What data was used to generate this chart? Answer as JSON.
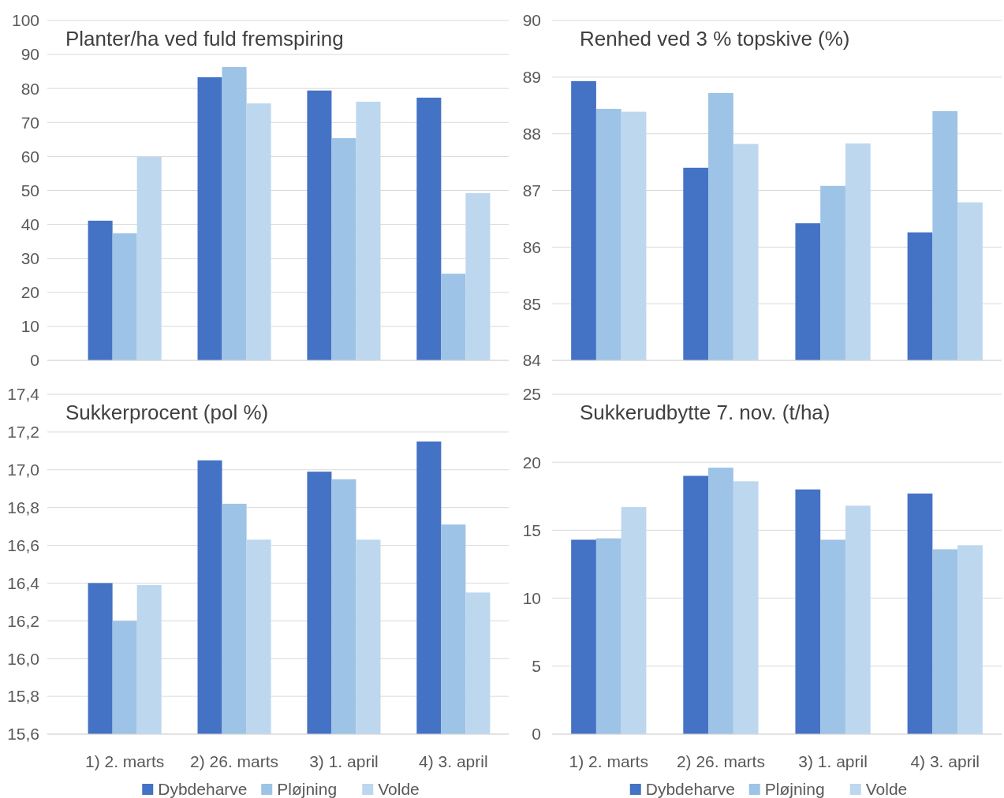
{
  "chart_data": [
    {
      "type": "bar",
      "title": "Planter/ha ved fuld fremspiring",
      "categories": [
        null,
        null,
        null,
        null
      ],
      "series": [
        {
          "color": "#4472c4",
          "values": [
            41.1,
            83.3,
            79.4,
            77.3
          ]
        },
        {
          "color": "#9dc3e6",
          "values": [
            37.4,
            86.3,
            65.4,
            25.5
          ]
        },
        {
          "color": "#bdd7ee",
          "values": [
            59.9,
            75.6,
            76.1,
            49.2
          ]
        }
      ],
      "ylim": [
        0,
        100
      ],
      "yticks": [
        0,
        10,
        20,
        30,
        40,
        50,
        60,
        70,
        80,
        90,
        100
      ],
      "grid": "y",
      "legend": false,
      "tick_labels": "y"
    },
    {
      "type": "bar",
      "title": "Renhed ved 3 % topskive (%)",
      "categories": [
        null,
        null,
        null,
        null
      ],
      "series": [
        {
          "color": "#4472c4",
          "values": [
            88.93,
            87.4,
            86.42,
            86.26
          ]
        },
        {
          "color": "#9dc3e6",
          "values": [
            88.44,
            88.72,
            87.08,
            88.4
          ]
        },
        {
          "color": "#bdd7ee",
          "values": [
            88.39,
            87.82,
            87.83,
            86.79
          ]
        }
      ],
      "ylim": [
        84,
        90
      ],
      "yticks": [
        84,
        85,
        86,
        87,
        88,
        89,
        90
      ],
      "grid": "y",
      "legend": false,
      "tick_labels": "y"
    },
    {
      "type": "bar",
      "title": "Sukkerprocent (pol %)",
      "categories": [
        "1) 2. marts",
        "2) 26. marts",
        "3) 1. april",
        "4) 3. april"
      ],
      "series": [
        {
          "name": "Dybdeharve",
          "color": "#4472c4",
          "values": [
            16.4,
            17.05,
            16.99,
            17.15
          ]
        },
        {
          "name": "Pløjning",
          "color": "#9dc3e6",
          "values": [
            16.2,
            16.82,
            16.95,
            16.71
          ]
        },
        {
          "name": "Volde",
          "color": "#bdd7ee",
          "values": [
            16.39,
            16.63,
            16.63,
            16.35
          ]
        }
      ],
      "ylim": [
        15.6,
        17.4
      ],
      "yticks": [
        {
          "value": 15.6,
          "label": "15,6"
        },
        {
          "value": 15.8,
          "label": "15,8"
        },
        {
          "value": 16.0,
          "label": "16,0"
        },
        {
          "value": 16.2,
          "label": "16,2"
        },
        {
          "value": 16.4,
          "label": "16,4"
        },
        {
          "value": 16.6,
          "label": "16,6"
        },
        {
          "value": 16.8,
          "label": "16,8"
        },
        {
          "value": 17.0,
          "label": "17,0"
        },
        {
          "value": 17.2,
          "label": "17,2"
        },
        {
          "value": 17.4,
          "label": "17,4"
        }
      ],
      "grid": "y",
      "legend": "bottom"
    },
    {
      "type": "bar",
      "title": "Sukkerudbytte 7. nov. (t/ha)",
      "categories": [
        "1) 2. marts",
        "2) 26. marts",
        "3) 1. april",
        "4) 3. april"
      ],
      "series": [
        {
          "name": "Dybdeharve",
          "color": "#4472c4",
          "values": [
            14.3,
            19.0,
            18.0,
            17.7
          ]
        },
        {
          "name": "Pløjning",
          "color": "#9dc3e6",
          "values": [
            14.4,
            19.6,
            14.3,
            13.6
          ]
        },
        {
          "name": "Volde",
          "color": "#bdd7ee",
          "values": [
            16.7,
            18.6,
            16.8,
            13.9
          ]
        }
      ],
      "ylim": [
        0,
        25
      ],
      "yticks": [
        0,
        5,
        10,
        15,
        20,
        25
      ],
      "grid": "y",
      "legend": "bottom"
    }
  ]
}
